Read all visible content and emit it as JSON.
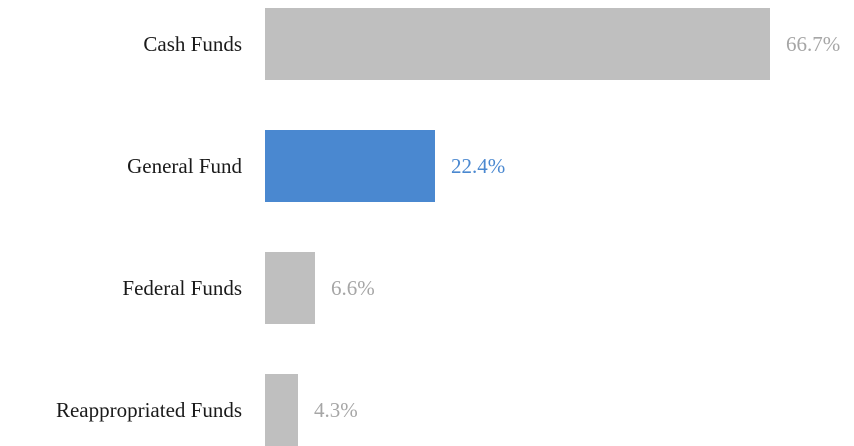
{
  "chart_data": {
    "type": "bar",
    "orientation": "horizontal",
    "categories": [
      "Cash Funds",
      "General Fund",
      "Federal Funds",
      "Reappropriated Funds"
    ],
    "values": [
      66.7,
      22.4,
      6.6,
      4.3
    ],
    "value_labels": [
      "66.7%",
      "22.4%",
      "6.6%",
      "4.3%"
    ],
    "title": "",
    "xlabel": "",
    "ylabel": "",
    "xlim": [
      0,
      66.7
    ],
    "grid": false,
    "legend": "none",
    "highlight_index": 1,
    "colors": {
      "default_bar": "#bfbfbf",
      "highlight_bar": "#4a88d0",
      "default_value_text": "#a6a6a6",
      "highlight_value_text": "#4a88d0",
      "category_text": "#1a1a1a"
    }
  }
}
